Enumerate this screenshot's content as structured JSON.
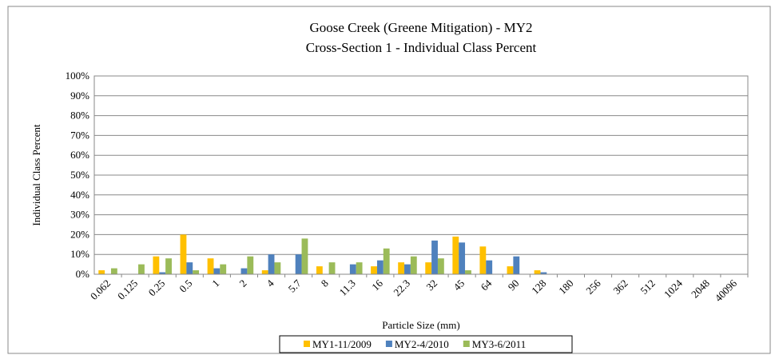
{
  "chart_data": {
    "type": "bar",
    "title": "Goose Creek (Greene Mitigation) - MY2",
    "subtitle": "Cross-Section 1 - Individual Class Percent",
    "x_label": "Particle Size (mm)",
    "y_label": "Individual Class Percent",
    "categories": [
      "0.062",
      "0.125",
      "0.25",
      "0.5",
      "1",
      "2",
      "4",
      "5.7",
      "8",
      "11.3",
      "16",
      "22.3",
      "32",
      "45",
      "64",
      "90",
      "128",
      "180",
      "256",
      "362",
      "512",
      "1024",
      "2048",
      "40096"
    ],
    "series": [
      {
        "name": "MY1-11/2009",
        "color": "#ffc000",
        "values": [
          2,
          0,
          9,
          20,
          8,
          0,
          2,
          0,
          4,
          0,
          4,
          6,
          6,
          19,
          14,
          4,
          2,
          0,
          0,
          0,
          0,
          0,
          0,
          0
        ]
      },
      {
        "name": "MY2-4/2010",
        "color": "#4f81bd",
        "values": [
          0,
          0,
          1,
          6,
          3,
          3,
          10,
          10,
          0,
          5,
          7,
          5,
          17,
          16,
          7,
          9,
          1,
          0,
          0,
          0,
          0,
          0,
          0,
          0
        ]
      },
      {
        "name": "MY3-6/2011",
        "color": "#9bbb59",
        "values": [
          3,
          5,
          8,
          2,
          5,
          9,
          6,
          18,
          6,
          6,
          13,
          9,
          8,
          2,
          0,
          0,
          0,
          0,
          0,
          0,
          0,
          0,
          0,
          0
        ]
      }
    ],
    "ylim": [
      0,
      100
    ],
    "yticks": [
      {
        "value": 0,
        "label": "0%"
      },
      {
        "value": 10,
        "label": "10%"
      },
      {
        "value": 20,
        "label": "20%"
      },
      {
        "value": 30,
        "label": "30%"
      },
      {
        "value": 40,
        "label": "40%"
      },
      {
        "value": 50,
        "label": "50%"
      },
      {
        "value": 60,
        "label": "60%"
      },
      {
        "value": 70,
        "label": "70%"
      },
      {
        "value": 80,
        "label": "80%"
      },
      {
        "value": 90,
        "label": "90%"
      },
      {
        "value": 100,
        "label": "100%"
      }
    ],
    "grid": true,
    "legend": "bottom"
  }
}
